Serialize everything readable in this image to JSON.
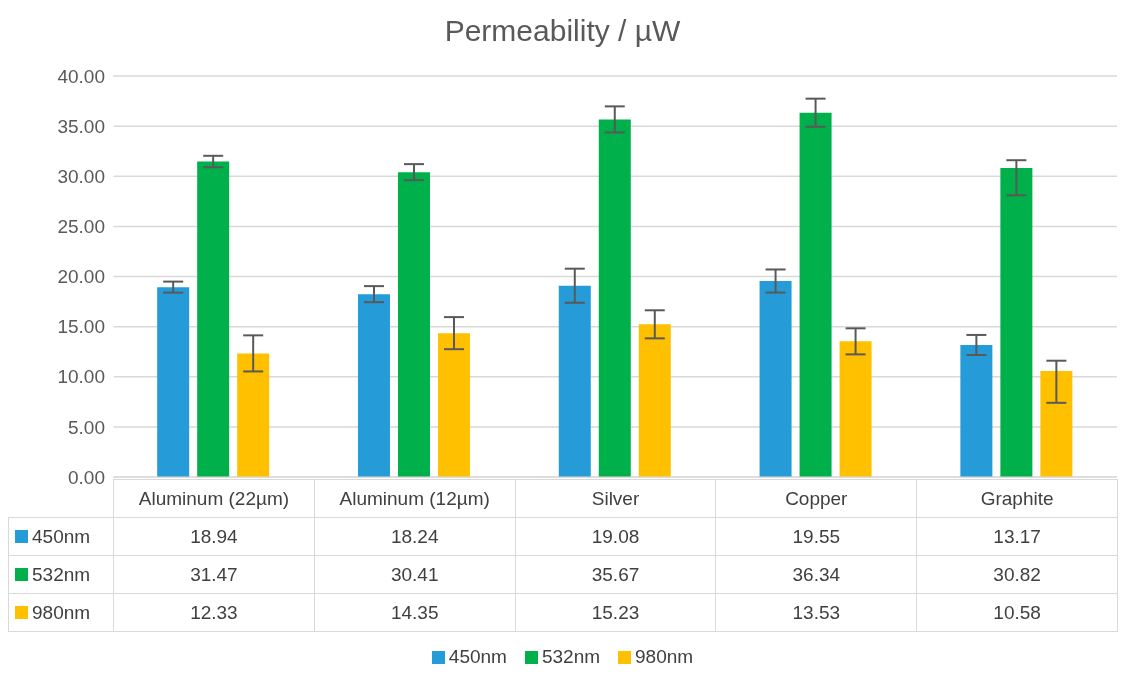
{
  "chart_data": {
    "type": "bar",
    "title": "Permeability / µW",
    "categories": [
      "Aluminum (22µm)",
      "Aluminum (12µm)",
      "Silver",
      "Copper",
      "Graphite"
    ],
    "series": [
      {
        "name": "450nm",
        "color": "#259bd7",
        "values": [
          18.94,
          18.24,
          19.08,
          19.55,
          13.17
        ],
        "errors": [
          0.55,
          0.8,
          1.7,
          1.15,
          1.0
        ]
      },
      {
        "name": "532nm",
        "color": "#00b04a",
        "values": [
          31.47,
          30.41,
          35.67,
          36.34,
          30.82
        ],
        "errors": [
          0.57,
          0.8,
          1.3,
          1.4,
          [
            28.1,
            31.6
          ]
        ]
      },
      {
        "name": "980nm",
        "color": "#ffc000",
        "values": [
          12.33,
          14.35,
          15.23,
          13.53,
          10.58
        ],
        "errors": [
          1.8,
          1.6,
          1.4,
          1.3,
          [
            7.4,
            11.6
          ]
        ]
      }
    ],
    "ylim": [
      0,
      40
    ],
    "yticks": [
      {
        "value": 0,
        "label": "0.00"
      },
      {
        "value": 5,
        "label": "5.00"
      },
      {
        "value": 10,
        "label": "10.00"
      },
      {
        "value": 15,
        "label": "15.00"
      },
      {
        "value": 20,
        "label": "20.00"
      },
      {
        "value": 25,
        "label": "25.00"
      },
      {
        "value": 30,
        "label": "30.00"
      },
      {
        "value": 35,
        "label": "35.00"
      },
      {
        "value": 40,
        "label": "40.00"
      }
    ],
    "grid": "y",
    "legend": "bottom",
    "data_labels": true
  }
}
